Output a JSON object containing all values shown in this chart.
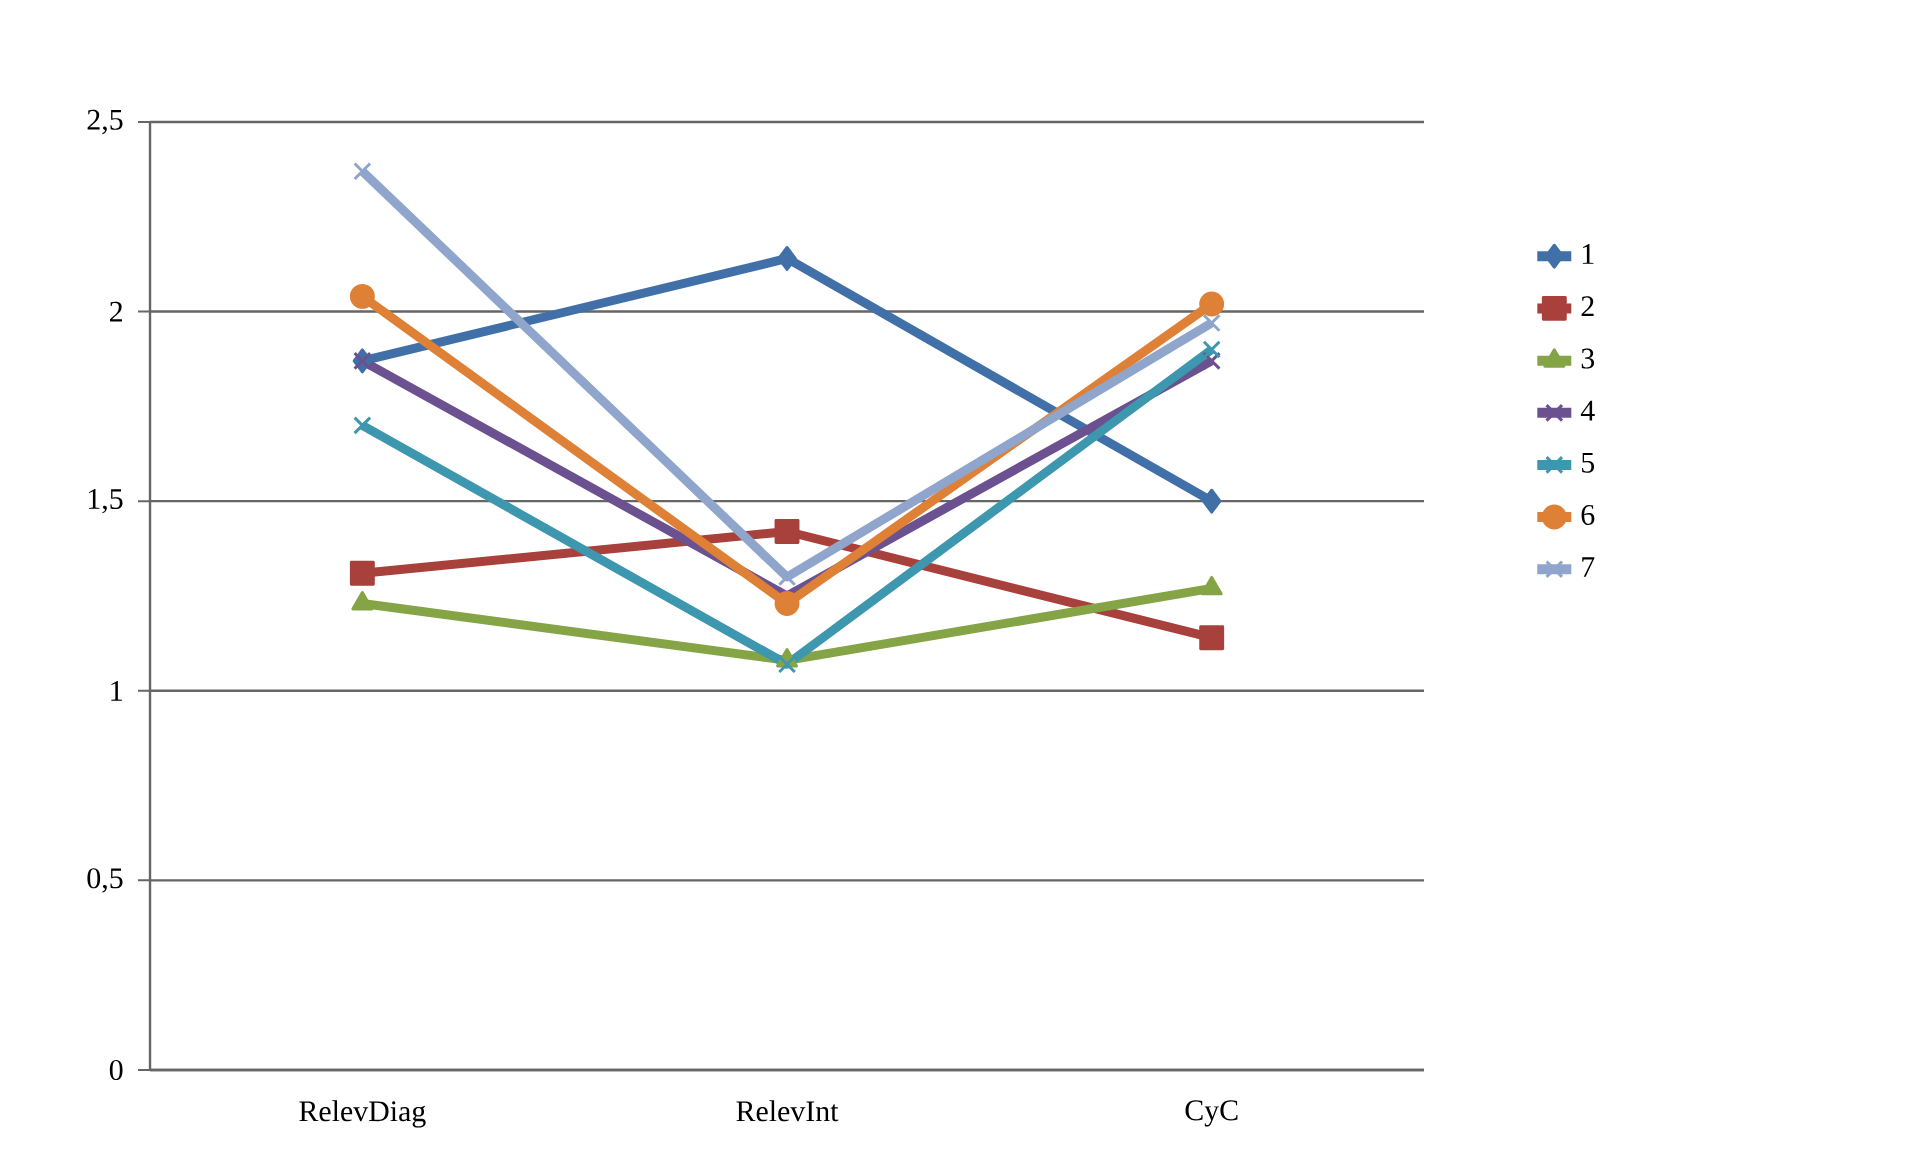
{
  "chart_data": {
    "type": "line",
    "categories": [
      "RelevDiag",
      "RelevInt",
      "CyC"
    ],
    "ylim": [
      0,
      2.5
    ],
    "yticks": [
      {
        "value": 0,
        "label": "0"
      },
      {
        "value": 0.5,
        "label": "0,5"
      },
      {
        "value": 1,
        "label": "1"
      },
      {
        "value": 1.5,
        "label": "1,5"
      },
      {
        "value": 2,
        "label": "2"
      },
      {
        "value": 2.5,
        "label": "2,5"
      }
    ],
    "grid": "y",
    "legend": "right",
    "line_style": "solid",
    "series": [
      {
        "name": "1",
        "color": "#4170a8",
        "marker": "diamond",
        "values": [
          1.87,
          2.14,
          1.5
        ]
      },
      {
        "name": "2",
        "color": "#a8403c",
        "marker": "square",
        "values": [
          1.31,
          1.42,
          1.14
        ]
      },
      {
        "name": "3",
        "color": "#85a446",
        "marker": "triangle",
        "values": [
          1.23,
          1.08,
          1.27
        ]
      },
      {
        "name": "4",
        "color": "#6c5190",
        "marker": "cross",
        "values": [
          1.87,
          1.25,
          1.87
        ]
      },
      {
        "name": "5",
        "color": "#3d97ae",
        "marker": "cross",
        "values": [
          1.7,
          1.07,
          1.9
        ]
      },
      {
        "name": "6",
        "color": "#de8035",
        "marker": "circle",
        "values": [
          2.04,
          1.23,
          2.02
        ]
      },
      {
        "name": "7",
        "color": "#8fa5cc",
        "marker": "cross",
        "values": [
          2.37,
          1.3,
          1.97
        ]
      }
    ]
  }
}
